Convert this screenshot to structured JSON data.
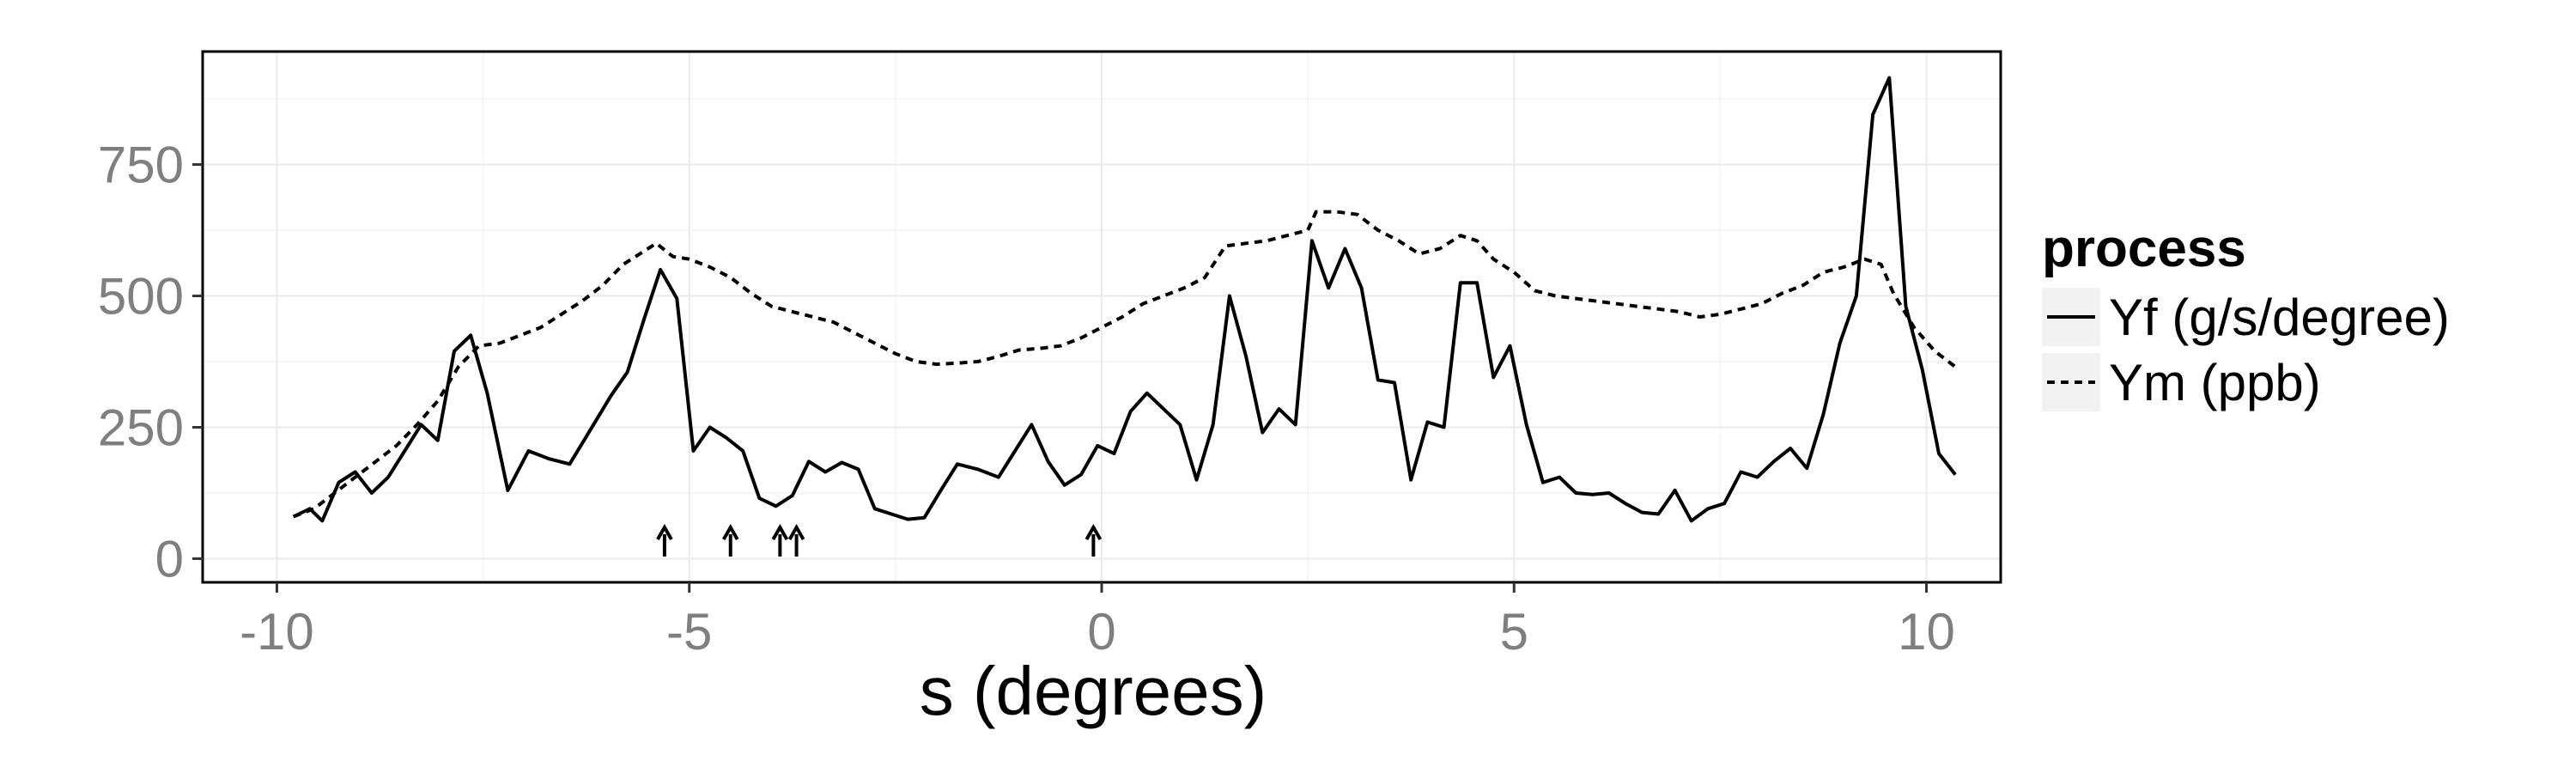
{
  "chart_data": {
    "type": "line",
    "title": "",
    "xlabel": "s (degrees)",
    "ylabel": "",
    "xlim": [
      -10.9,
      10.9
    ],
    "ylim": [
      -45,
      965
    ],
    "xticks": [
      -10,
      -5,
      0,
      5,
      10
    ],
    "xtick_labels": [
      "-10",
      "-5",
      "0",
      "5",
      "10"
    ],
    "yticks": [
      0,
      250,
      500,
      750
    ],
    "ytick_labels": [
      "0",
      "250",
      "500",
      "750"
    ],
    "grid": true,
    "legend": {
      "title": "process",
      "position": "right"
    },
    "series": [
      {
        "name": "Yf (g/s/degree)",
        "style": "solid",
        "color": "#000000",
        "points": [
          [
            -9.8,
            80
          ],
          [
            -9.6,
            95
          ],
          [
            -9.45,
            72
          ],
          [
            -9.25,
            145
          ],
          [
            -9.05,
            165
          ],
          [
            -8.85,
            125
          ],
          [
            -8.65,
            155
          ],
          [
            -8.45,
            205
          ],
          [
            -8.25,
            255
          ],
          [
            -8.05,
            225
          ],
          [
            -7.85,
            395
          ],
          [
            -7.65,
            425
          ],
          [
            -7.45,
            315
          ],
          [
            -7.2,
            130
          ],
          [
            -6.95,
            205
          ],
          [
            -6.7,
            190
          ],
          [
            -6.45,
            180
          ],
          [
            -6.2,
            245
          ],
          [
            -5.95,
            310
          ],
          [
            -5.75,
            355
          ],
          [
            -5.55,
            455
          ],
          [
            -5.35,
            550
          ],
          [
            -5.15,
            495
          ],
          [
            -4.95,
            205
          ],
          [
            -4.75,
            250
          ],
          [
            -4.55,
            230
          ],
          [
            -4.35,
            205
          ],
          [
            -4.15,
            115
          ],
          [
            -3.95,
            100
          ],
          [
            -3.75,
            120
          ],
          [
            -3.55,
            185
          ],
          [
            -3.35,
            165
          ],
          [
            -3.15,
            183
          ],
          [
            -2.95,
            170
          ],
          [
            -2.75,
            95
          ],
          [
            -2.55,
            85
          ],
          [
            -2.35,
            75
          ],
          [
            -2.15,
            78
          ],
          [
            -1.95,
            130
          ],
          [
            -1.75,
            180
          ],
          [
            -1.5,
            170
          ],
          [
            -1.25,
            155
          ],
          [
            -1.05,
            205
          ],
          [
            -0.85,
            255
          ],
          [
            -0.65,
            185
          ],
          [
            -0.45,
            140
          ],
          [
            -0.25,
            160
          ],
          [
            -0.05,
            215
          ],
          [
            0.15,
            200
          ],
          [
            0.35,
            280
          ],
          [
            0.55,
            315
          ],
          [
            0.75,
            285
          ],
          [
            0.95,
            255
          ],
          [
            1.15,
            150
          ],
          [
            1.35,
            255
          ],
          [
            1.55,
            500
          ],
          [
            1.75,
            385
          ],
          [
            1.95,
            240
          ],
          [
            2.15,
            285
          ],
          [
            2.35,
            255
          ],
          [
            2.55,
            605
          ],
          [
            2.75,
            515
          ],
          [
            2.95,
            590
          ],
          [
            3.15,
            515
          ],
          [
            3.35,
            340
          ],
          [
            3.55,
            335
          ],
          [
            3.75,
            150
          ],
          [
            3.95,
            260
          ],
          [
            4.15,
            250
          ],
          [
            4.35,
            525
          ],
          [
            4.55,
            525
          ],
          [
            4.75,
            345
          ],
          [
            4.95,
            405
          ],
          [
            5.15,
            255
          ],
          [
            5.35,
            145
          ],
          [
            5.55,
            155
          ],
          [
            5.75,
            125
          ],
          [
            5.95,
            122
          ],
          [
            6.15,
            125
          ],
          [
            6.35,
            105
          ],
          [
            6.55,
            88
          ],
          [
            6.75,
            85
          ],
          [
            6.95,
            130
          ],
          [
            7.15,
            72
          ],
          [
            7.35,
            95
          ],
          [
            7.55,
            105
          ],
          [
            7.75,
            165
          ],
          [
            7.95,
            155
          ],
          [
            8.15,
            185
          ],
          [
            8.35,
            210
          ],
          [
            8.55,
            172
          ],
          [
            8.75,
            275
          ],
          [
            8.95,
            410
          ],
          [
            9.15,
            500
          ],
          [
            9.35,
            845
          ],
          [
            9.55,
            915
          ],
          [
            9.75,
            480
          ],
          [
            9.95,
            360
          ],
          [
            10.15,
            200
          ],
          [
            10.35,
            160
          ]
        ]
      },
      {
        "name": "Ym (ppb)",
        "style": "dashed",
        "color": "#000000",
        "points": [
          [
            -9.8,
            80
          ],
          [
            -9.55,
            95
          ],
          [
            -9.3,
            125
          ],
          [
            -9.05,
            155
          ],
          [
            -8.8,
            185
          ],
          [
            -8.55,
            215
          ],
          [
            -8.3,
            255
          ],
          [
            -8.05,
            300
          ],
          [
            -7.8,
            365
          ],
          [
            -7.55,
            405
          ],
          [
            -7.3,
            410
          ],
          [
            -7.05,
            425
          ],
          [
            -6.8,
            440
          ],
          [
            -6.55,
            465
          ],
          [
            -6.3,
            490
          ],
          [
            -6.05,
            520
          ],
          [
            -5.8,
            560
          ],
          [
            -5.55,
            585
          ],
          [
            -5.4,
            600
          ],
          [
            -5.2,
            575
          ],
          [
            -5.0,
            570
          ],
          [
            -4.75,
            555
          ],
          [
            -4.5,
            535
          ],
          [
            -4.25,
            505
          ],
          [
            -4.0,
            480
          ],
          [
            -3.75,
            470
          ],
          [
            -3.5,
            460
          ],
          [
            -3.25,
            450
          ],
          [
            -3.0,
            430
          ],
          [
            -2.75,
            410
          ],
          [
            -2.5,
            390
          ],
          [
            -2.25,
            375
          ],
          [
            -2.0,
            370
          ],
          [
            -1.75,
            372
          ],
          [
            -1.5,
            375
          ],
          [
            -1.25,
            385
          ],
          [
            -1.0,
            397
          ],
          [
            -0.75,
            400
          ],
          [
            -0.5,
            405
          ],
          [
            -0.25,
            420
          ],
          [
            0.0,
            440
          ],
          [
            0.25,
            460
          ],
          [
            0.5,
            485
          ],
          [
            0.75,
            500
          ],
          [
            1.0,
            515
          ],
          [
            1.25,
            535
          ],
          [
            1.5,
            595
          ],
          [
            1.75,
            600
          ],
          [
            2.0,
            605
          ],
          [
            2.25,
            615
          ],
          [
            2.5,
            625
          ],
          [
            2.6,
            660
          ],
          [
            2.85,
            660
          ],
          [
            3.1,
            655
          ],
          [
            3.35,
            625
          ],
          [
            3.6,
            605
          ],
          [
            3.85,
            580
          ],
          [
            4.1,
            590
          ],
          [
            4.35,
            615
          ],
          [
            4.55,
            605
          ],
          [
            4.75,
            570
          ],
          [
            5.0,
            545
          ],
          [
            5.25,
            510
          ],
          [
            5.5,
            500
          ],
          [
            5.75,
            495
          ],
          [
            6.0,
            490
          ],
          [
            6.25,
            485
          ],
          [
            6.5,
            480
          ],
          [
            6.75,
            475
          ],
          [
            7.0,
            470
          ],
          [
            7.25,
            460
          ],
          [
            7.5,
            465
          ],
          [
            7.75,
            475
          ],
          [
            8.0,
            485
          ],
          [
            8.25,
            505
          ],
          [
            8.5,
            520
          ],
          [
            8.75,
            545
          ],
          [
            9.0,
            555
          ],
          [
            9.25,
            570
          ],
          [
            9.45,
            560
          ],
          [
            9.6,
            505
          ],
          [
            9.85,
            440
          ],
          [
            10.1,
            395
          ],
          [
            10.35,
            365
          ]
        ]
      }
    ],
    "annotations": {
      "arrow_x": [
        -5.3,
        -4.5,
        -3.9,
        -3.7,
        -0.1
      ]
    }
  }
}
